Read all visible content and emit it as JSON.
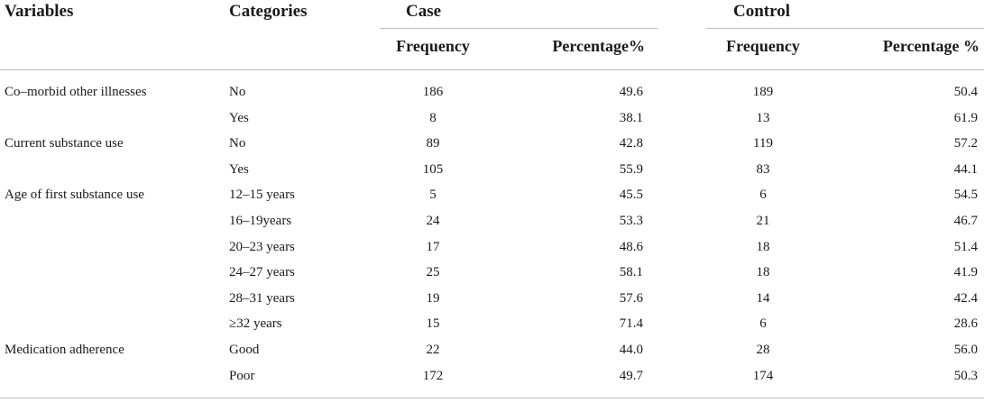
{
  "table": {
    "headers": {
      "variables": "Variables",
      "categories": "Categories",
      "case": "Case",
      "control": "Control",
      "case_frequency": "Frequency",
      "case_percentage": "Percentage%",
      "control_frequency": "Frequency",
      "control_percentage": "Percentage %"
    },
    "rows": [
      {
        "variable": "Co–morbid other illnesses",
        "category": "No",
        "case_freq": "186",
        "case_pct": "49.6",
        "control_freq": "189",
        "control_pct": "50.4"
      },
      {
        "variable": "",
        "category": "Yes",
        "case_freq": "8",
        "case_pct": "38.1",
        "control_freq": "13",
        "control_pct": "61.9"
      },
      {
        "variable": "Current substance use",
        "category": "No",
        "case_freq": "89",
        "case_pct": "42.8",
        "control_freq": "119",
        "control_pct": "57.2"
      },
      {
        "variable": "",
        "category": "Yes",
        "case_freq": "105",
        "case_pct": "55.9",
        "control_freq": "83",
        "control_pct": "44.1"
      },
      {
        "variable": "Age of first substance use",
        "category": "12–15 years",
        "case_freq": "5",
        "case_pct": "45.5",
        "control_freq": "6",
        "control_pct": "54.5"
      },
      {
        "variable": "",
        "category": "16–19years",
        "case_freq": "24",
        "case_pct": "53.3",
        "control_freq": "21",
        "control_pct": "46.7"
      },
      {
        "variable": "",
        "category": "20–23 years",
        "case_freq": "17",
        "case_pct": "48.6",
        "control_freq": "18",
        "control_pct": "51.4"
      },
      {
        "variable": "",
        "category": "24–27 years",
        "case_freq": "25",
        "case_pct": "58.1",
        "control_freq": "18",
        "control_pct": "41.9"
      },
      {
        "variable": "",
        "category": "28–31 years",
        "case_freq": "19",
        "case_pct": "57.6",
        "control_freq": "14",
        "control_pct": "42.4"
      },
      {
        "variable": "",
        "category": "≥32 years",
        "case_freq": "15",
        "case_pct": "71.4",
        "control_freq": "6",
        "control_pct": "28.6"
      },
      {
        "variable": "Medication adherence",
        "category": "Good",
        "case_freq": "22",
        "case_pct": "44.0",
        "control_freq": "28",
        "control_pct": "56.0"
      },
      {
        "variable": "",
        "category": "Poor",
        "case_freq": "172",
        "case_pct": "49.7",
        "control_freq": "174",
        "control_pct": "50.3"
      }
    ]
  }
}
